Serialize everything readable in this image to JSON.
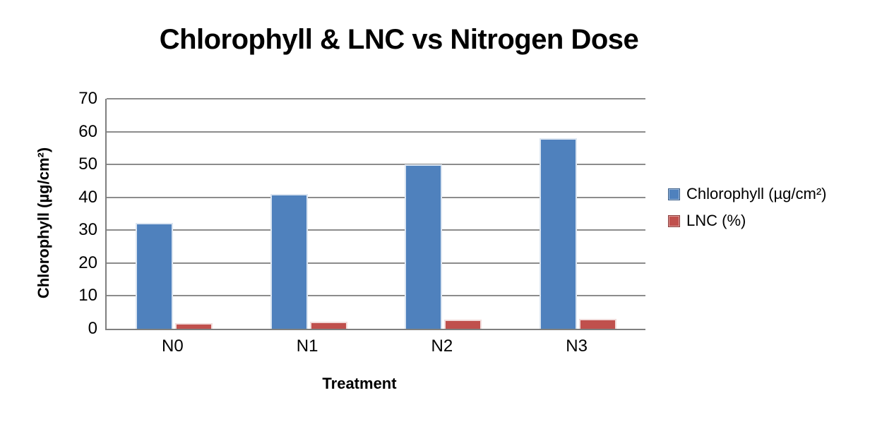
{
  "chart_data": {
    "type": "bar",
    "title": "Chlorophyll & LNC vs Nitrogen Dose",
    "xlabel": "Treatment",
    "ylabel": "Chlorophyll (µg/cm²)",
    "categories": [
      "N0",
      "N1",
      "N2",
      "N3"
    ],
    "series": [
      {
        "name": "Chlorophyll (µg/cm²)",
        "values": [
          32.3,
          41,
          50,
          58
        ],
        "color": "#4F81BD",
        "outline": "#DBE5F1"
      },
      {
        "name": "LNC (%)",
        "values": [
          1.8,
          2.2,
          2.7,
          3.1
        ],
        "color": "#C0504D",
        "outline": "#F2DCDB"
      }
    ],
    "ylim": [
      0,
      70
    ],
    "ytick_step": 10,
    "grid": true,
    "legend_position": "right",
    "colors": {
      "gridline": "#8C8C8C",
      "axis": "#7F7F7F",
      "text": "#000000",
      "background": "#FFFFFF"
    }
  }
}
